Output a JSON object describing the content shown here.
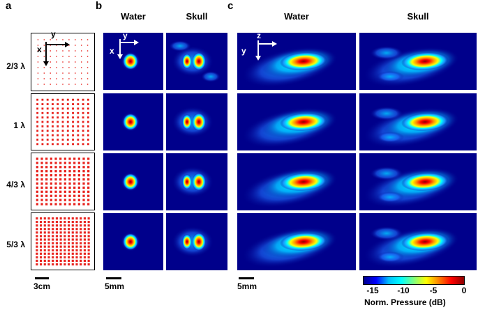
{
  "panel_labels": {
    "a": "a",
    "b": "b",
    "c": "c"
  },
  "column_headers": {
    "b_water": "Water",
    "b_skull": "Skull",
    "c_water": "Water",
    "c_skull": "Skull"
  },
  "row_labels": [
    "2/3 λ",
    "1 λ",
    "4/3 λ",
    "5/3 λ"
  ],
  "axis_labels": {
    "a_x": "x",
    "a_y": "y",
    "b_x": "x",
    "b_y": "y",
    "c_y": "y",
    "c_z": "z"
  },
  "scale_bars": {
    "a": "3cm",
    "b": "5mm",
    "c": "5mm"
  },
  "colorbar": {
    "title": "Norm. Pressure (dB)",
    "ticks": [
      "-15",
      "-10",
      "-5",
      "0"
    ],
    "colors": [
      "#00008b",
      "#0000ff",
      "#00bfff",
      "#00ffff",
      "#7fff7f",
      "#ffff00",
      "#ff8000",
      "#ff0000",
      "#8b0000"
    ]
  },
  "array_density": [
    9,
    11,
    12,
    14
  ]
}
